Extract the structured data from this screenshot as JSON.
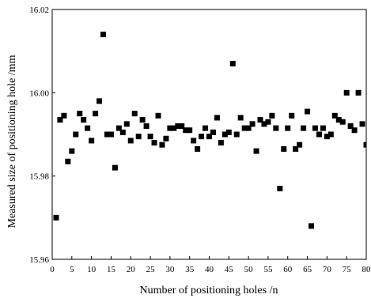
{
  "chart_data": {
    "type": "scatter",
    "title": "",
    "xlabel": "Number of positioning holes /n",
    "ylabel": "Measured size of positioning hole /mm",
    "xlim": [
      0,
      80
    ],
    "ylim": [
      15.96,
      16.02
    ],
    "x_ticks": [
      0,
      5,
      10,
      15,
      20,
      25,
      30,
      35,
      40,
      45,
      50,
      55,
      60,
      65,
      70,
      75,
      80
    ],
    "x_tick_labels": [
      "0",
      "5",
      "10",
      "15",
      "20",
      "25",
      "30",
      "35",
      "40",
      "45",
      "50",
      "55",
      "60",
      "65",
      "70",
      "75",
      "80"
    ],
    "y_ticks": [
      15.96,
      15.98,
      16.0,
      16.02
    ],
    "y_tick_labels": [
      "15.96",
      "15.98",
      "16.00",
      "16.02"
    ],
    "grid": false,
    "marker": "square",
    "marker_color": "#000000",
    "series": [
      {
        "x": [
          1,
          2,
          3,
          4,
          5,
          6,
          7,
          8,
          9,
          10,
          11,
          12,
          13,
          14,
          15,
          16,
          17,
          18,
          19,
          20,
          21,
          22,
          23,
          24,
          25,
          26,
          27,
          28,
          29,
          30,
          31,
          32,
          33,
          34,
          35,
          36,
          37,
          38,
          39,
          40,
          41,
          42,
          43,
          44,
          45,
          46,
          47,
          48,
          49,
          50,
          51,
          52,
          53,
          54,
          55,
          56,
          57,
          58,
          59,
          60,
          61,
          62,
          63,
          64,
          65,
          66,
          67,
          68,
          69,
          70,
          71,
          72,
          73,
          74,
          75,
          76,
          77,
          78,
          79,
          80
        ],
        "y": [
          15.97,
          15.9935,
          15.9945,
          15.9835,
          15.986,
          15.99,
          15.995,
          15.9935,
          15.9915,
          15.9885,
          15.995,
          15.998,
          16.014,
          15.99,
          15.99,
          15.982,
          15.9915,
          15.9905,
          15.9925,
          15.9885,
          15.995,
          15.9895,
          15.9935,
          15.992,
          15.9895,
          15.988,
          15.9945,
          15.9875,
          15.989,
          15.9915,
          15.9915,
          15.992,
          15.992,
          15.991,
          15.991,
          15.9885,
          15.9865,
          15.9895,
          15.9915,
          15.9895,
          15.9905,
          15.994,
          15.988,
          15.99,
          15.9905,
          16.007,
          15.99,
          15.994,
          15.9915,
          15.9915,
          15.9925,
          15.986,
          15.9935,
          15.9925,
          15.993,
          15.9945,
          15.9915,
          15.977,
          15.9865,
          15.9915,
          15.9945,
          15.9865,
          15.9875,
          15.9915,
          15.9955,
          15.968,
          15.9915,
          15.99,
          15.9915,
          15.9895,
          15.99,
          15.9945,
          15.9935,
          15.993,
          16.0,
          15.992,
          15.991,
          16.0,
          15.9925,
          15.9875
        ]
      }
    ]
  }
}
